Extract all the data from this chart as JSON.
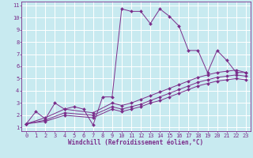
{
  "xlabel": "Windchill (Refroidissement éolien,°C)",
  "bg_color": "#c8eaf0",
  "grid_color": "#ffffff",
  "line_color": "#7b2d8b",
  "xlim": [
    -0.5,
    23.5
  ],
  "ylim": [
    0.7,
    11.3
  ],
  "xticks": [
    0,
    1,
    2,
    3,
    4,
    5,
    6,
    7,
    8,
    9,
    10,
    11,
    12,
    13,
    14,
    15,
    16,
    17,
    18,
    19,
    20,
    21,
    22,
    23
  ],
  "yticks": [
    1,
    2,
    3,
    4,
    5,
    6,
    7,
    8,
    9,
    10,
    11
  ],
  "lines": [
    {
      "x": [
        0,
        1,
        2,
        3,
        4,
        5,
        6,
        7,
        8,
        9,
        10,
        11,
        12,
        13,
        14,
        15,
        16,
        17,
        18,
        19,
        20,
        21,
        22,
        23
      ],
      "y": [
        1.3,
        2.3,
        1.7,
        3.0,
        2.5,
        2.7,
        2.5,
        1.2,
        3.5,
        3.5,
        10.7,
        10.5,
        10.5,
        9.5,
        10.7,
        10.1,
        9.3,
        7.3,
        7.3,
        5.5,
        7.3,
        6.5,
        5.5,
        5.5
      ]
    },
    {
      "x": [
        0,
        2,
        4,
        7,
        9,
        10,
        11,
        12,
        13,
        14,
        15,
        16,
        17,
        18,
        19,
        20,
        21,
        22,
        23
      ],
      "y": [
        1.3,
        1.8,
        2.5,
        2.2,
        3.0,
        2.8,
        3.0,
        3.3,
        3.6,
        3.9,
        4.2,
        4.5,
        4.8,
        5.1,
        5.3,
        5.5,
        5.6,
        5.7,
        5.5
      ]
    },
    {
      "x": [
        0,
        2,
        4,
        7,
        9,
        10,
        11,
        12,
        13,
        14,
        15,
        16,
        17,
        18,
        19,
        20,
        21,
        22,
        23
      ],
      "y": [
        1.3,
        1.6,
        2.2,
        2.0,
        2.7,
        2.5,
        2.7,
        2.9,
        3.2,
        3.5,
        3.8,
        4.1,
        4.4,
        4.7,
        4.9,
        5.1,
        5.2,
        5.3,
        5.2
      ]
    },
    {
      "x": [
        0,
        2,
        4,
        7,
        9,
        10,
        11,
        12,
        13,
        14,
        15,
        16,
        17,
        18,
        19,
        20,
        21,
        22,
        23
      ],
      "y": [
        1.3,
        1.5,
        2.0,
        1.8,
        2.5,
        2.3,
        2.5,
        2.7,
        3.0,
        3.2,
        3.5,
        3.8,
        4.1,
        4.4,
        4.6,
        4.8,
        4.9,
        5.0,
        4.9
      ]
    }
  ],
  "font_color": "#7b2d8b",
  "tick_fontsize": 5.0,
  "label_fontsize": 5.5,
  "spine_color": "#7b2d8b",
  "marker_size": 2.0,
  "line_width": 0.7
}
